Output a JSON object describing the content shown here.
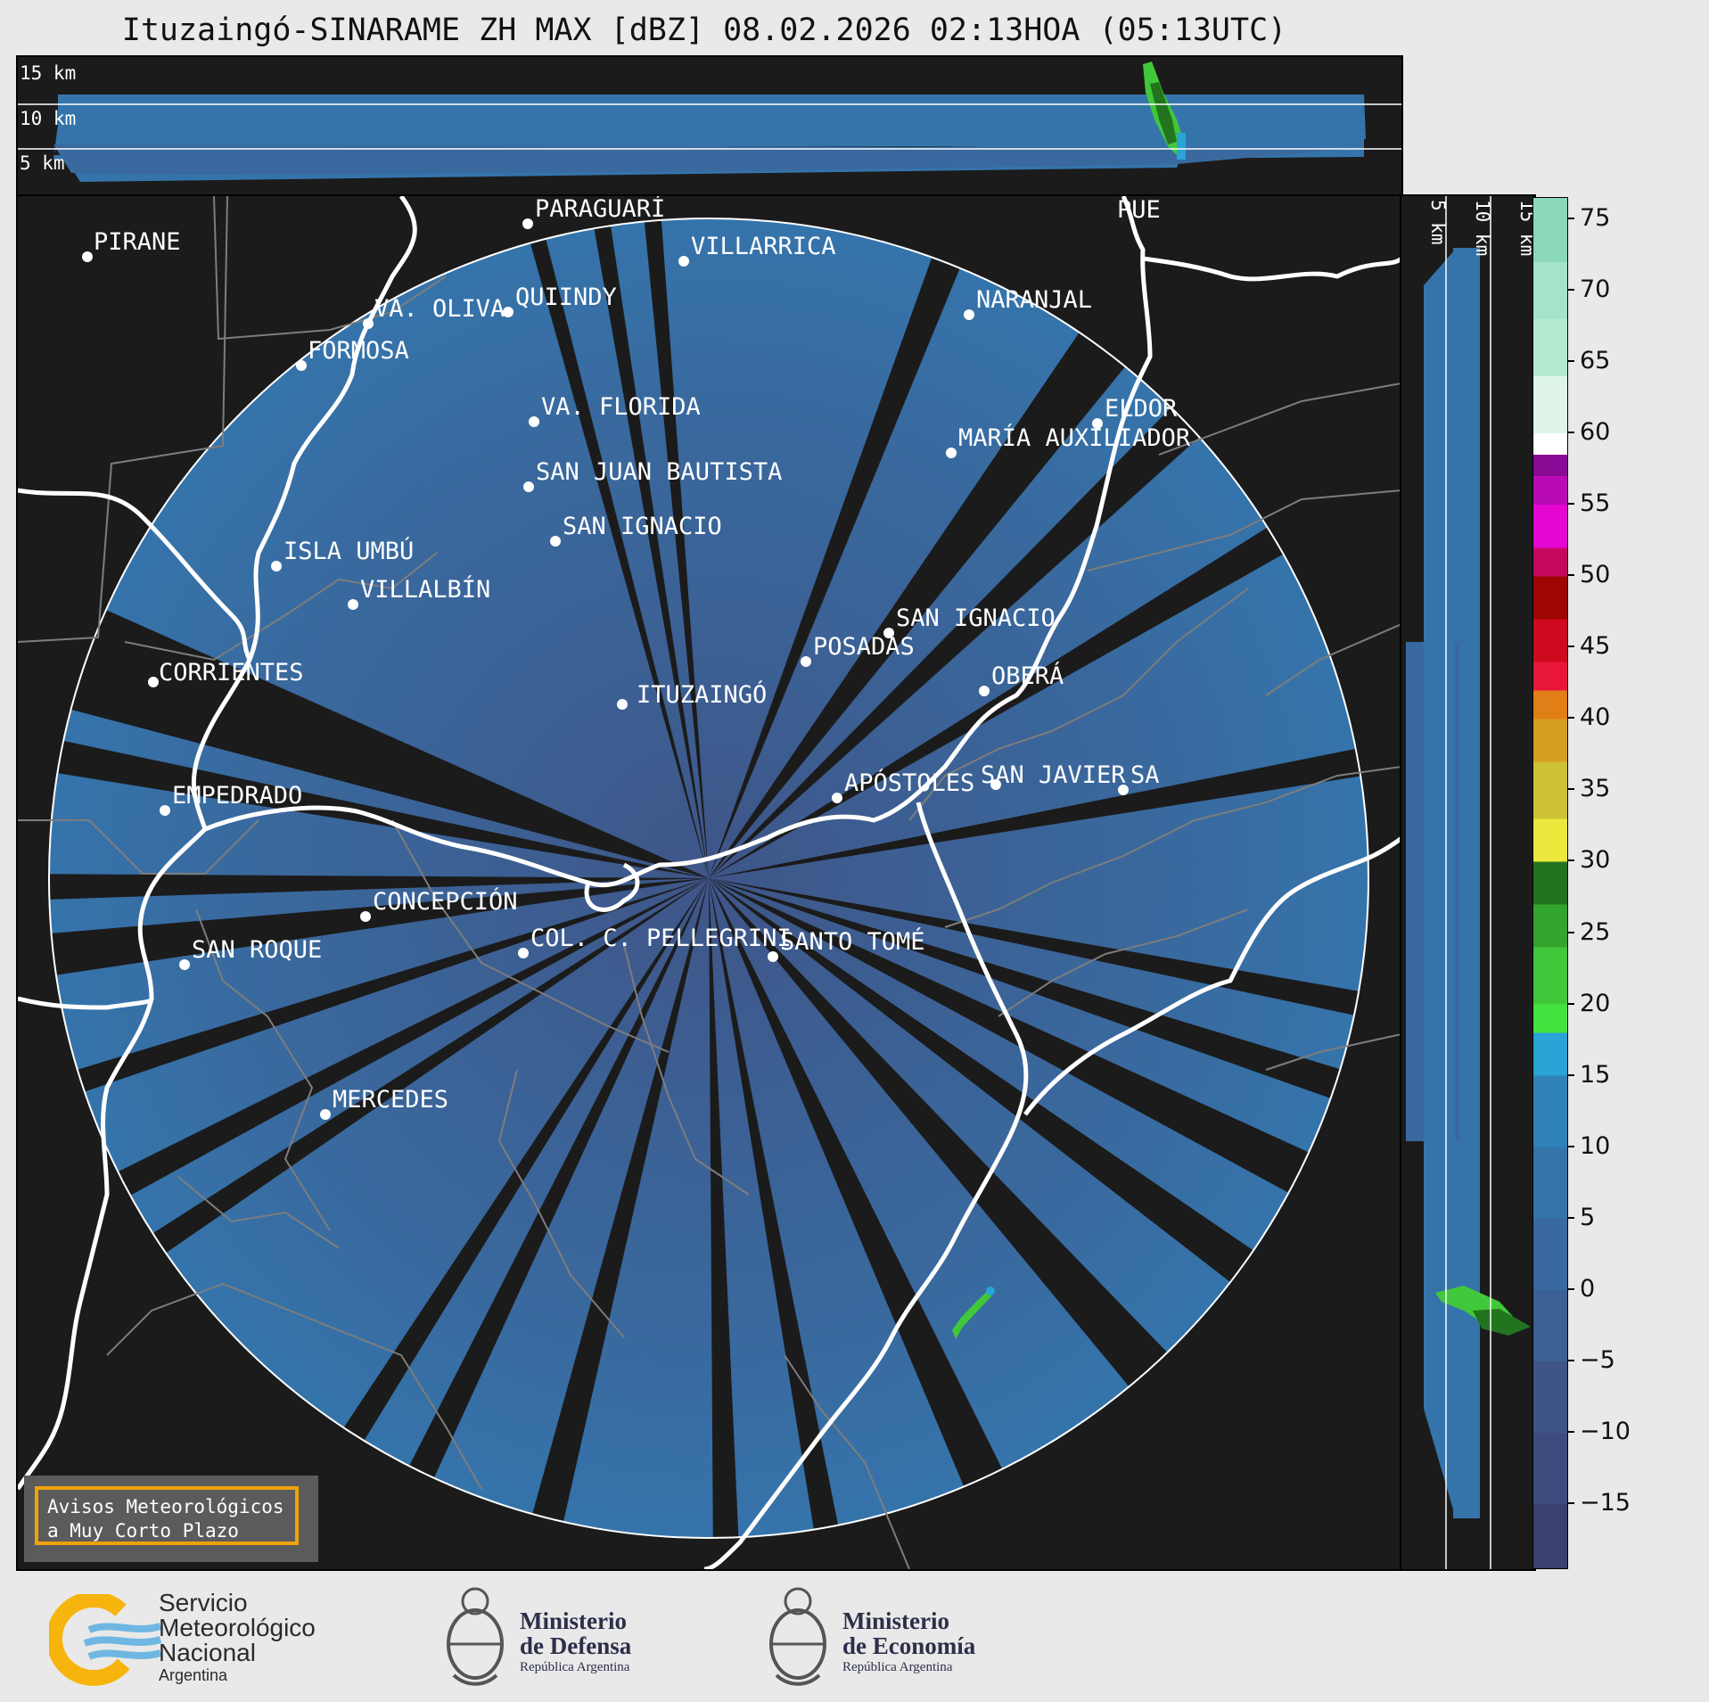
{
  "title": "Ituzaingó-SINARAME ZH MAX [dBZ] 08.02.2026 02:13HOA (05:13UTC)",
  "top_panel": {
    "labels": [
      "15 km",
      "10 km",
      "5 km"
    ]
  },
  "right_panel": {
    "labels": [
      "5 km",
      "10 km",
      "15 km"
    ]
  },
  "map": {
    "center_label": "ITUZAINGÓ",
    "places": [
      {
        "name": "PIRANE"
      },
      {
        "name": "PARAGUARÍ"
      },
      {
        "name": "VILLARRICA"
      },
      {
        "name": "QUIINDY"
      },
      {
        "name": "VA. OLIVA"
      },
      {
        "name": "FORMOSA"
      },
      {
        "name": "NARANJAL"
      },
      {
        "name": "VA. FLORIDA"
      },
      {
        "name": "ELDOR"
      },
      {
        "name": "MARÍA AUXILIADOR"
      },
      {
        "name": "SAN JUAN BAUTISTA"
      },
      {
        "name": "SAN IGNACIO"
      },
      {
        "name": "ISLA UMBÚ"
      },
      {
        "name": "VILLALBÍN"
      },
      {
        "name": "SAN IGNACIO"
      },
      {
        "name": "POSADAS"
      },
      {
        "name": "CORRIENTES"
      },
      {
        "name": "OBERÁ"
      },
      {
        "name": "APÓSTOLES"
      },
      {
        "name": "SAN JAVIER"
      },
      {
        "name": "SA"
      },
      {
        "name": "EMPEDRADO"
      },
      {
        "name": "CONCEPCIÓN"
      },
      {
        "name": "COL. C. PELLEGRINI"
      },
      {
        "name": "SANTO TOMÉ"
      },
      {
        "name": "SAN ROQUE"
      },
      {
        "name": "MERCEDES"
      },
      {
        "name": "PUE"
      }
    ]
  },
  "colorbar": {
    "ticks": [
      "75",
      "70",
      "65",
      "60",
      "55",
      "50",
      "45",
      "40",
      "35",
      "30",
      "25",
      "20",
      "15",
      "10",
      "5",
      "0",
      "−5",
      "−10",
      "−15"
    ],
    "min": -19.5,
    "max": 76.5,
    "colors": [
      {
        "from": -19.5,
        "to": -15,
        "color": "#3a4070"
      },
      {
        "from": -15,
        "to": -10,
        "color": "#3d4b7e"
      },
      {
        "from": -10,
        "to": -5,
        "color": "#3f5588"
      },
      {
        "from": -5,
        "to": 0,
        "color": "#3c6094"
      },
      {
        "from": 0,
        "to": 5,
        "color": "#39699e"
      },
      {
        "from": 5,
        "to": 10,
        "color": "#3574ab"
      },
      {
        "from": 10,
        "to": 15,
        "color": "#2f82b8"
      },
      {
        "from": 15,
        "to": 18,
        "color": "#2aa3d6"
      },
      {
        "from": 18,
        "to": 20,
        "color": "#43e33f"
      },
      {
        "from": 20,
        "to": 24,
        "color": "#41c83a"
      },
      {
        "from": 24,
        "to": 27,
        "color": "#34a52c"
      },
      {
        "from": 27,
        "to": 30,
        "color": "#23741f"
      },
      {
        "from": 30,
        "to": 33,
        "color": "#ece93e"
      },
      {
        "from": 33,
        "to": 37,
        "color": "#cdc235"
      },
      {
        "from": 37,
        "to": 40,
        "color": "#d69d22"
      },
      {
        "from": 40,
        "to": 42,
        "color": "#e07f17"
      },
      {
        "from": 42,
        "to": 44,
        "color": "#e8173a"
      },
      {
        "from": 44,
        "to": 47,
        "color": "#cd0a1e"
      },
      {
        "from": 47,
        "to": 50,
        "color": "#9e0505"
      },
      {
        "from": 50,
        "to": 52,
        "color": "#c4085f"
      },
      {
        "from": 52,
        "to": 55,
        "color": "#e406d1"
      },
      {
        "from": 55,
        "to": 57,
        "color": "#b80bb5"
      },
      {
        "from": 57,
        "to": 58.5,
        "color": "#880a95"
      },
      {
        "from": 58.5,
        "to": 60,
        "color": "#ffffff"
      },
      {
        "from": 60,
        "to": 64,
        "color": "#dff5ea"
      },
      {
        "from": 64,
        "to": 68,
        "color": "#b5ead1"
      },
      {
        "from": 68,
        "to": 72,
        "color": "#a4e4c8"
      },
      {
        "from": 72,
        "to": 76.5,
        "color": "#8ad8b7"
      }
    ]
  },
  "aviso": {
    "line1": "Avisos Meteorológicos",
    "line2": "a Muy Corto Plazo"
  },
  "logos": {
    "smn": {
      "line1": "Servicio",
      "line2": "Meteorológico",
      "line3": "Nacional",
      "line4": "Argentina"
    },
    "defensa": {
      "line1": "Ministerio",
      "line2": "de Defensa",
      "line3": "República Argentina"
    },
    "economia": {
      "line1": "Ministerio",
      "line2": "de Economía",
      "line3": "República Argentina"
    }
  }
}
